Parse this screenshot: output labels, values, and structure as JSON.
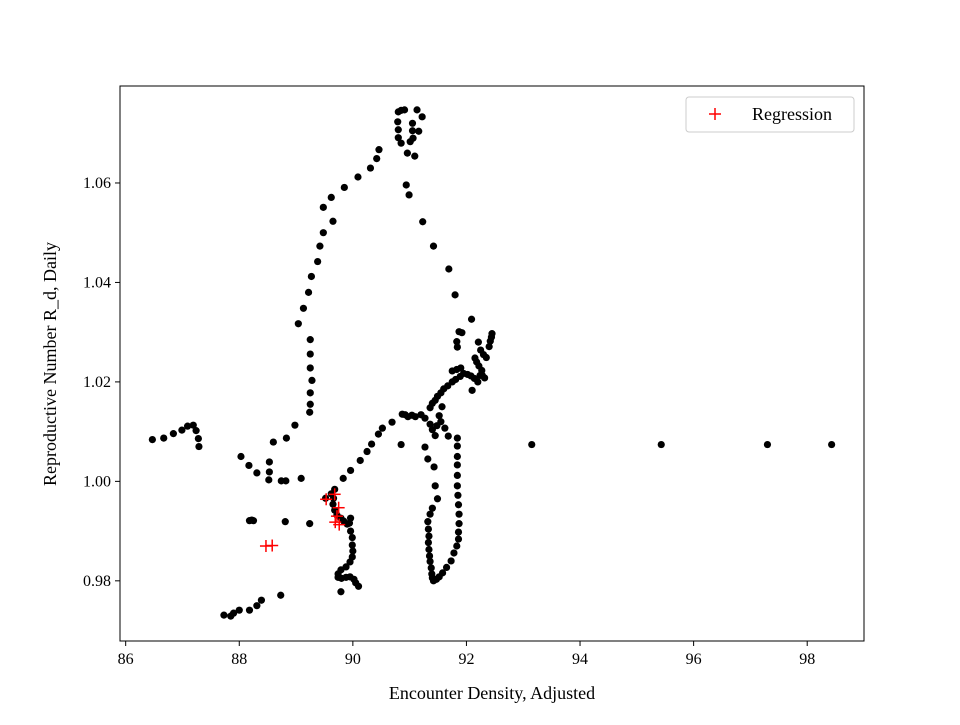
{
  "chart_data": {
    "type": "scatter",
    "title": "",
    "xlabel": "Encounter Density, Adjusted",
    "ylabel": "Reproductive Number R_d, Daily",
    "xlim": [
      85.9,
      99.0
    ],
    "ylim": [
      0.9679,
      1.0795
    ],
    "x_ticks": [
      86,
      88,
      90,
      92,
      94,
      96,
      98
    ],
    "y_ticks": [
      0.98,
      1.0,
      1.02,
      1.04,
      1.06
    ],
    "x_tick_labels": [
      "86",
      "88",
      "90",
      "92",
      "94",
      "96",
      "98"
    ],
    "y_tick_labels": [
      "0.98",
      "1.00",
      "1.02",
      "1.04",
      "1.06"
    ],
    "grid": false,
    "legend_position": "top-right",
    "series": [
      {
        "marker": "dot",
        "color": "#000000",
        "points": [
          [
            86.47,
            1.0084
          ],
          [
            86.67,
            1.0087
          ],
          [
            86.84,
            1.0096
          ],
          [
            86.99,
            1.0103
          ],
          [
            87.09,
            1.0111
          ],
          [
            87.19,
            1.0113
          ],
          [
            87.24,
            1.0102
          ],
          [
            87.28,
            1.0086
          ],
          [
            87.29,
            1.007
          ],
          [
            87.73,
            0.9731
          ],
          [
            87.85,
            0.9729
          ],
          [
            87.9,
            0.9735
          ],
          [
            88.0,
            0.9741
          ],
          [
            88.18,
            0.9741
          ],
          [
            88.31,
            0.975
          ],
          [
            88.39,
            0.9761
          ],
          [
            88.73,
            0.9771
          ],
          [
            88.03,
            1.005
          ],
          [
            88.17,
            1.0032
          ],
          [
            88.31,
            1.0017
          ],
          [
            88.53,
            1.0039
          ],
          [
            88.53,
            1.0019
          ],
          [
            88.52,
            1.0003
          ],
          [
            88.6,
            1.0079
          ],
          [
            88.74,
            1.0001
          ],
          [
            88.82,
            1.0001
          ],
          [
            88.83,
            1.0087
          ],
          [
            88.98,
            1.0113
          ],
          [
            89.09,
            1.0006
          ],
          [
            88.18,
            0.9921
          ],
          [
            88.22,
            0.9922
          ],
          [
            88.25,
            0.9921
          ],
          [
            88.81,
            0.9919
          ],
          [
            89.24,
            0.9915
          ],
          [
            89.04,
            1.0317
          ],
          [
            89.13,
            1.0348
          ],
          [
            89.22,
            1.038
          ],
          [
            89.27,
            1.0412
          ],
          [
            89.38,
            1.0442
          ],
          [
            89.42,
            1.0473
          ],
          [
            89.48,
            1.05
          ],
          [
            89.48,
            1.0551
          ],
          [
            89.62,
            1.0571
          ],
          [
            89.65,
            1.0523
          ],
          [
            89.85,
            1.0591
          ],
          [
            90.09,
            1.0612
          ],
          [
            90.31,
            1.063
          ],
          [
            90.42,
            1.0649
          ],
          [
            90.46,
            1.0667
          ],
          [
            89.25,
            1.0285
          ],
          [
            89.25,
            1.0256
          ],
          [
            89.25,
            1.0228
          ],
          [
            89.28,
            1.0203
          ],
          [
            89.25,
            1.0178
          ],
          [
            89.25,
            1.0155
          ],
          [
            89.24,
            1.0139
          ],
          [
            90.8,
            1.0743
          ],
          [
            90.85,
            1.0746
          ],
          [
            90.91,
            1.0747
          ],
          [
            91.13,
            1.0747
          ],
          [
            91.22,
            1.0733
          ],
          [
            90.79,
            1.0723
          ],
          [
            90.8,
            1.0707
          ],
          [
            90.8,
            1.0691
          ],
          [
            90.85,
            1.068
          ],
          [
            91.05,
            1.072
          ],
          [
            91.05,
            1.0705
          ],
          [
            91.06,
            1.069
          ],
          [
            91.01,
            1.0683
          ],
          [
            90.96,
            1.066
          ],
          [
            91.09,
            1.0654
          ],
          [
            91.16,
            1.0704
          ],
          [
            90.94,
            1.0596
          ],
          [
            90.99,
            1.0576
          ],
          [
            91.23,
            1.0522
          ],
          [
            91.42,
            1.0473
          ],
          [
            91.69,
            1.0427
          ],
          [
            91.8,
            1.0375
          ],
          [
            92.09,
            1.0326
          ],
          [
            91.87,
            1.0301
          ],
          [
            91.92,
            1.0299
          ],
          [
            91.83,
            1.0281
          ],
          [
            91.84,
            1.027
          ],
          [
            92.21,
            1.028
          ],
          [
            92.25,
            1.0264
          ],
          [
            92.3,
            1.0255
          ],
          [
            92.35,
            1.0249
          ],
          [
            92.4,
            1.0271
          ],
          [
            92.42,
            1.0282
          ],
          [
            92.44,
            1.029
          ],
          [
            92.45,
            1.0297
          ],
          [
            92.15,
            1.0248
          ],
          [
            92.18,
            1.024
          ],
          [
            92.22,
            1.0232
          ],
          [
            92.27,
            1.0223
          ],
          [
            92.28,
            1.0213
          ],
          [
            92.32,
            1.0208
          ],
          [
            92.14,
            1.0207
          ],
          [
            92.08,
            1.0212
          ],
          [
            92.02,
            1.0215
          ],
          [
            91.95,
            1.0217
          ],
          [
            91.89,
            1.0211
          ],
          [
            91.81,
            1.0205
          ],
          [
            91.75,
            1.02
          ],
          [
            91.67,
            1.0192
          ],
          [
            91.6,
            1.0186
          ],
          [
            91.55,
            1.0178
          ],
          [
            91.49,
            1.0171
          ],
          [
            91.45,
            1.0163
          ],
          [
            91.4,
            1.0157
          ],
          [
            91.36,
            1.0148
          ],
          [
            92.1,
            1.0183
          ],
          [
            92.2,
            1.02
          ],
          [
            92.24,
            1.0213
          ],
          [
            91.75,
            1.0222
          ],
          [
            91.83,
            1.0225
          ],
          [
            91.9,
            1.0228
          ],
          [
            91.55,
            1.012
          ],
          [
            91.62,
            1.0107
          ],
          [
            91.68,
            1.0091
          ],
          [
            91.57,
            1.015
          ],
          [
            91.52,
            1.0132
          ],
          [
            91.48,
            1.0112
          ],
          [
            91.45,
            1.0092
          ],
          [
            91.27,
            1.0069
          ],
          [
            91.32,
            1.0045
          ],
          [
            91.43,
            1.0029
          ],
          [
            91.45,
            0.9991
          ],
          [
            91.49,
            0.9965
          ],
          [
            91.4,
            0.9946
          ],
          [
            91.36,
            0.9934
          ],
          [
            91.32,
            0.9919
          ],
          [
            91.33,
            0.9904
          ],
          [
            91.34,
            0.989
          ],
          [
            91.33,
            0.9877
          ],
          [
            91.34,
            0.9863
          ],
          [
            91.35,
            0.985
          ],
          [
            91.36,
            0.9839
          ],
          [
            91.38,
            0.9826
          ],
          [
            91.39,
            0.9814
          ],
          [
            91.4,
            0.9806
          ],
          [
            91.42,
            0.98
          ],
          [
            91.47,
            0.9803
          ],
          [
            91.52,
            0.9808
          ],
          [
            91.58,
            0.9816
          ],
          [
            91.65,
            0.9827
          ],
          [
            91.73,
            0.984
          ],
          [
            91.78,
            0.9856
          ],
          [
            91.83,
            0.987
          ],
          [
            91.86,
            0.9884
          ],
          [
            91.86,
            0.9898
          ],
          [
            91.87,
            0.9915
          ],
          [
            91.87,
            0.9934
          ],
          [
            91.86,
            0.9953
          ],
          [
            91.85,
            0.9972
          ],
          [
            91.84,
            0.9991
          ],
          [
            91.84,
            1.0012
          ],
          [
            91.84,
            1.0033
          ],
          [
            91.84,
            1.005
          ],
          [
            91.84,
            1.0071
          ],
          [
            91.84,
            1.0087
          ],
          [
            89.52,
            0.9966
          ],
          [
            89.62,
            0.9975
          ],
          [
            89.68,
            0.9984
          ],
          [
            89.66,
            0.9966
          ],
          [
            89.65,
            0.9954
          ],
          [
            89.68,
            0.9942
          ],
          [
            89.72,
            0.9932
          ],
          [
            89.79,
            0.9926
          ],
          [
            89.84,
            0.992
          ],
          [
            89.9,
            0.9914
          ],
          [
            89.96,
            0.9926
          ],
          [
            89.94,
            0.9916
          ],
          [
            89.96,
            0.99
          ],
          [
            89.99,
            0.9887
          ],
          [
            89.99,
            0.9872
          ],
          [
            90.0,
            0.986
          ],
          [
            89.99,
            0.9848
          ],
          [
            89.95,
            0.9838
          ],
          [
            89.88,
            0.9828
          ],
          [
            89.79,
            0.9822
          ],
          [
            89.74,
            0.9814
          ],
          [
            89.74,
            0.9807
          ],
          [
            89.8,
            0.9805
          ],
          [
            89.88,
            0.9807
          ],
          [
            89.95,
            0.9808
          ],
          [
            90.02,
            0.9803
          ],
          [
            90.05,
            0.9796
          ],
          [
            90.1,
            0.9789
          ],
          [
            89.79,
            0.9778
          ],
          [
            89.83,
            1.0006
          ],
          [
            89.96,
            1.0022
          ],
          [
            90.13,
            1.0042
          ],
          [
            90.25,
            1.006
          ],
          [
            90.33,
            1.0075
          ],
          [
            90.45,
            1.0095
          ],
          [
            90.52,
            1.0107
          ],
          [
            90.69,
            1.0119
          ],
          [
            90.87,
            1.0135
          ],
          [
            90.92,
            1.0134
          ],
          [
            90.97,
            1.013
          ],
          [
            91.04,
            1.0133
          ],
          [
            91.1,
            1.013
          ],
          [
            91.2,
            1.0134
          ],
          [
            91.27,
            1.0127
          ],
          [
            91.36,
            1.0115
          ],
          [
            91.4,
            1.0104
          ],
          [
            90.85,
            1.0074
          ],
          [
            93.15,
            1.0074
          ],
          [
            95.43,
            1.0074
          ],
          [
            97.3,
            1.0074
          ],
          [
            98.43,
            1.0074
          ]
        ]
      },
      {
        "name": "Regression",
        "marker": "plus",
        "color": "#ff0000",
        "points": [
          [
            88.47,
            0.987
          ],
          [
            88.58,
            0.9871
          ],
          [
            89.53,
            0.9964
          ],
          [
            89.68,
            0.9974
          ],
          [
            89.75,
            0.9947
          ],
          [
            89.72,
            0.993
          ],
          [
            89.69,
            0.9918
          ],
          [
            89.76,
            0.9913
          ]
        ]
      }
    ]
  }
}
